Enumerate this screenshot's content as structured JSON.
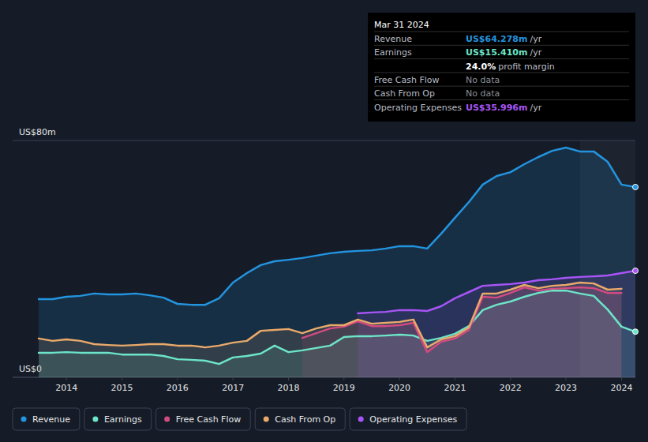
{
  "chart_data": {
    "type": "area",
    "x": [
      2013.5,
      2013.75,
      2014,
      2014.25,
      2014.5,
      2014.75,
      2015,
      2015.25,
      2015.5,
      2015.75,
      2016,
      2016.25,
      2016.5,
      2016.75,
      2017,
      2017.25,
      2017.5,
      2017.75,
      2018,
      2018.25,
      2018.5,
      2018.75,
      2019,
      2019.25,
      2019.5,
      2019.75,
      2020,
      2020.25,
      2020.5,
      2020.75,
      2021,
      2021.25,
      2021.5,
      2021.75,
      2022,
      2022.25,
      2022.5,
      2022.75,
      2023,
      2023.25,
      2023.5,
      2023.75,
      2024,
      2024.25
    ],
    "xlim": [
      2013.03,
      2024.25
    ],
    "xticks": [
      2014,
      2015,
      2016,
      2017,
      2018,
      2019,
      2020,
      2021,
      2022,
      2023,
      2024
    ],
    "ylim": [
      0,
      80
    ],
    "yticks": [
      {
        "value": 0,
        "label": "US$0"
      },
      {
        "value": 80,
        "label": "US$80m"
      }
    ],
    "grid": true,
    "legend": "bottom-left",
    "series": [
      {
        "name": "Revenue",
        "color": "#2394df",
        "values": [
          26.4,
          26.4,
          27.2,
          27.5,
          28.3,
          28,
          28,
          28.3,
          27.7,
          26.9,
          24.8,
          24.5,
          24.5,
          26.7,
          32,
          35.2,
          37.9,
          39.2,
          39.7,
          40.3,
          41.1,
          41.9,
          42.4,
          42.7,
          42.9,
          43.5,
          44.3,
          44.3,
          43.5,
          48.5,
          53.9,
          59.2,
          65.1,
          68,
          69.3,
          72,
          74.4,
          76.5,
          77.6,
          76.3,
          76.3,
          72.8,
          65.1,
          64.278
        ]
      },
      {
        "name": "Earnings",
        "color": "#6ce5c8",
        "values": [
          8.3,
          8.3,
          8.5,
          8.3,
          8.3,
          8.3,
          7.7,
          7.7,
          7.7,
          7.2,
          6.1,
          5.9,
          5.6,
          4.5,
          6.7,
          7.2,
          8,
          10.7,
          8.5,
          9.1,
          9.9,
          10.7,
          13.6,
          13.9,
          13.9,
          14.1,
          14.4,
          14.1,
          12.3,
          13.3,
          14.7,
          17.3,
          22.7,
          24.5,
          25.6,
          27.2,
          28.5,
          29.3,
          29.3,
          28.3,
          27.5,
          22.9,
          17.1,
          15.41
        ]
      },
      {
        "name": "Free Cash Flow",
        "color": "#d24a80",
        "values": [
          null,
          null,
          null,
          null,
          null,
          null,
          null,
          null,
          null,
          null,
          null,
          null,
          null,
          null,
          null,
          null,
          null,
          null,
          null,
          13.3,
          14.9,
          16.5,
          17.1,
          18.9,
          17.3,
          17.3,
          17.6,
          18.4,
          8.5,
          12,
          13.1,
          16,
          27.2,
          26.9,
          28.5,
          30.4,
          29.3,
          29.9,
          30.1,
          30.4,
          30.1,
          28.5,
          28.5,
          null
        ]
      },
      {
        "name": "Cash From Op",
        "color": "#e9a96a",
        "values": [
          13.1,
          12.3,
          12.8,
          12.3,
          11.2,
          10.9,
          10.7,
          10.9,
          11.2,
          11.2,
          10.7,
          10.7,
          10.1,
          10.7,
          11.7,
          12.3,
          15.7,
          16,
          16.3,
          14.9,
          16.5,
          17.6,
          17.6,
          19.5,
          18.1,
          18.4,
          18.7,
          19.5,
          10.1,
          12.8,
          13.9,
          16.8,
          28.3,
          28.3,
          29.6,
          31.2,
          30.1,
          30.9,
          31.2,
          32,
          31.7,
          29.6,
          29.9,
          null
        ]
      },
      {
        "name": "Operating Expenses",
        "color": "#a855f7",
        "values": [
          null,
          null,
          null,
          null,
          null,
          null,
          null,
          null,
          null,
          null,
          null,
          null,
          null,
          null,
          null,
          null,
          null,
          null,
          null,
          null,
          null,
          null,
          null,
          21.6,
          21.9,
          22.1,
          22.7,
          22.7,
          22.4,
          24,
          26.7,
          28.8,
          30.9,
          31.2,
          31.5,
          32,
          32.8,
          33.1,
          33.6,
          33.9,
          34.1,
          34.4,
          35.2,
          35.996
        ]
      }
    ],
    "tooltip": {
      "title": "Mar 31 2024",
      "rows": [
        {
          "label": "Revenue",
          "value": "US$64.278m",
          "unit": "/yr"
        },
        {
          "label": "Earnings",
          "value": "US$15.410m",
          "unit": "/yr"
        },
        {
          "value": "24.0%",
          "unit": "profit margin"
        },
        {
          "label": "Free Cash Flow",
          "value": "No data"
        },
        {
          "label": "Cash From Op",
          "value": "No data"
        },
        {
          "label": "Operating Expenses",
          "value": "US$35.996m",
          "unit": "/yr"
        }
      ]
    }
  }
}
